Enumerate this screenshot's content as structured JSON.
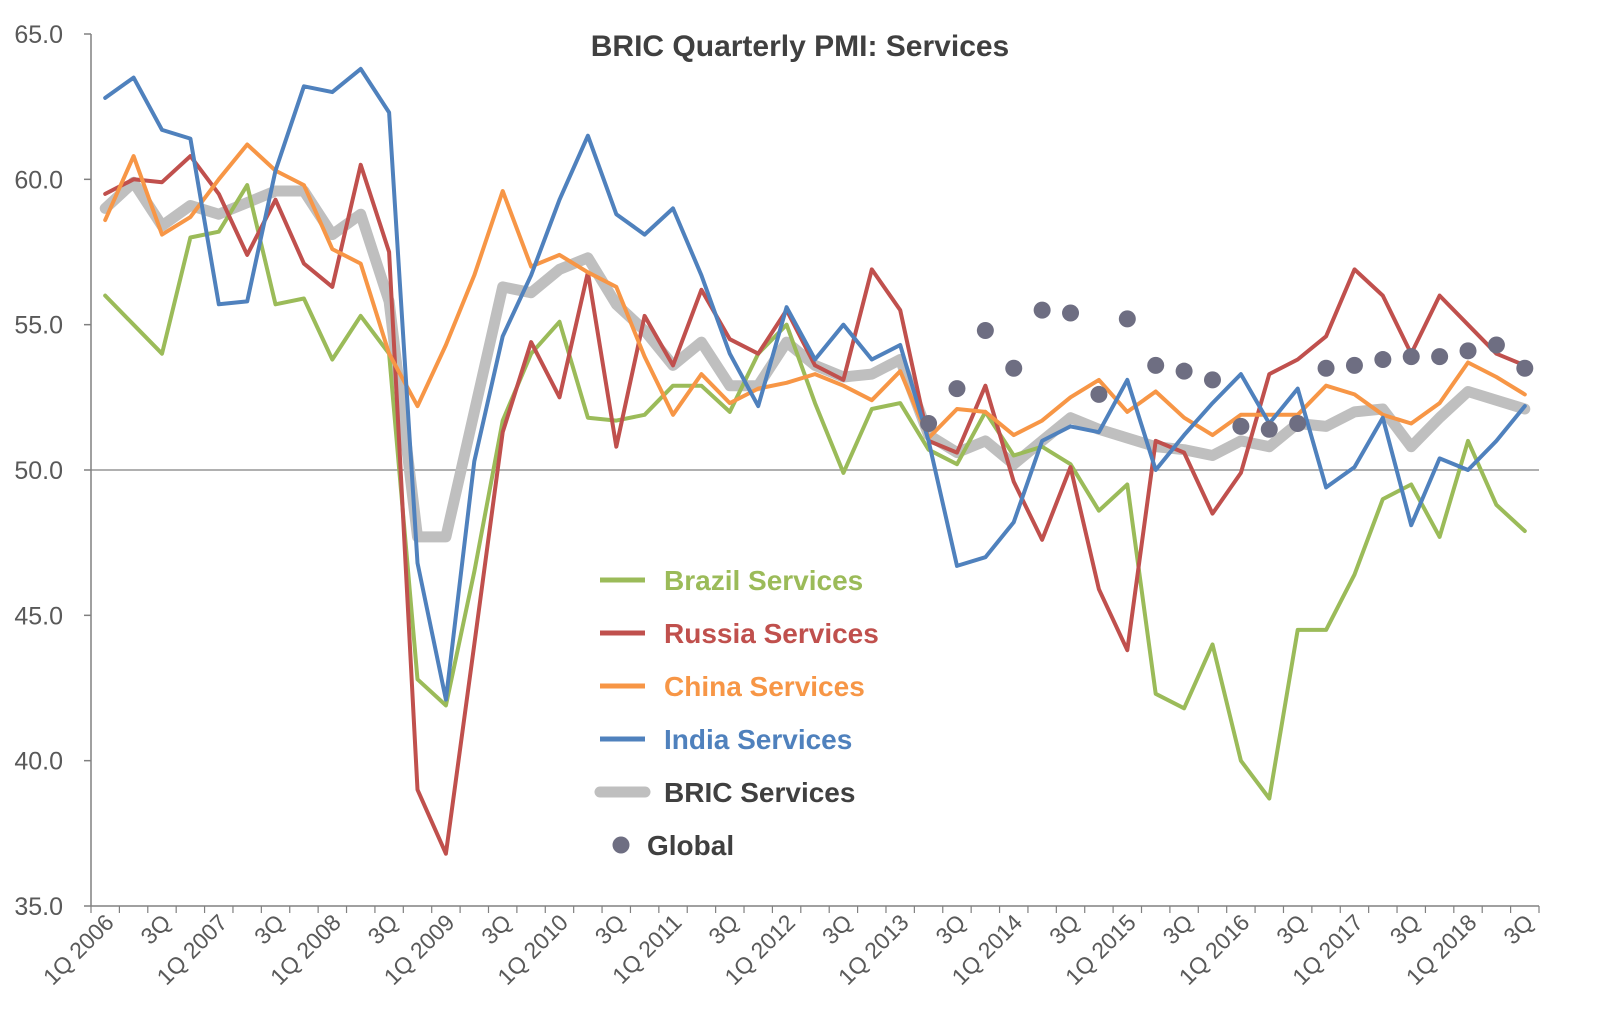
{
  "chart_data": {
    "type": "line",
    "title": "BRIC Quarterly PMI: Services",
    "xlabel": "",
    "ylabel": "",
    "ylim": [
      35.0,
      65.0
    ],
    "yticks": [
      "35.0",
      "40.0",
      "45.0",
      "50.0",
      "55.0",
      "60.0",
      "65.0"
    ],
    "reference_line": 50.0,
    "x_tick_labels": [
      "1Q 2006",
      "3Q",
      "1Q 2007",
      "3Q",
      "1Q 2008",
      "3Q",
      "1Q 2009",
      "3Q",
      "1Q 2010",
      "3Q",
      "1Q 2011",
      "3Q",
      "1Q 2012",
      "3Q",
      "1Q 2013",
      "3Q",
      "1Q 2014",
      "3Q",
      "1Q 2015",
      "3Q",
      "1Q 2016",
      "3Q",
      "1Q 2017",
      "3Q",
      "1Q 2018",
      "3Q"
    ],
    "legend_position": "center",
    "series": [
      {
        "name": "Brazil Services",
        "color": "#9BBB59",
        "style": "line",
        "values": [
          56.0,
          55.0,
          54.0,
          58.0,
          58.2,
          59.8,
          55.7,
          55.9,
          53.8,
          55.3,
          54.0,
          42.8,
          41.9,
          46.5,
          51.7,
          54.0,
          55.1,
          51.8,
          51.7,
          51.9,
          52.9,
          52.9,
          52.0,
          54.0,
          55.0,
          52.3,
          49.9,
          52.1,
          52.3,
          50.7,
          50.2,
          52.0,
          50.5,
          50.8,
          50.2,
          48.6,
          49.5,
          42.3,
          41.8,
          44.0,
          40.0,
          38.7,
          44.5,
          44.5,
          46.4,
          49.0,
          49.5,
          47.7,
          51.0,
          48.8,
          47.9
        ]
      },
      {
        "name": "Russia Services",
        "color": "#C0504D",
        "style": "line",
        "values": [
          59.5,
          60.0,
          59.9,
          60.8,
          59.5,
          57.4,
          59.3,
          57.1,
          56.3,
          60.5,
          57.5,
          39.0,
          36.8,
          44.0,
          51.3,
          54.4,
          52.5,
          56.8,
          50.8,
          55.3,
          53.6,
          56.2,
          54.5,
          54.0,
          55.5,
          53.6,
          53.1,
          56.9,
          55.5,
          51.0,
          50.6,
          52.9,
          49.6,
          47.6,
          50.1,
          45.9,
          43.8,
          51.0,
          50.6,
          48.5,
          49.9,
          53.3,
          53.8,
          54.6,
          56.9,
          56.0,
          54.0,
          56.0,
          55.0,
          54.0,
          53.6
        ]
      },
      {
        "name": "China Services",
        "color": "#F79646",
        "style": "line",
        "values": [
          58.6,
          60.8,
          58.1,
          58.7,
          60.0,
          61.2,
          60.3,
          59.8,
          57.6,
          57.1,
          54.0,
          52.2,
          54.3,
          56.7,
          59.6,
          57.0,
          57.4,
          56.8,
          56.3,
          53.9,
          51.9,
          53.3,
          52.3,
          52.8,
          53.0,
          53.3,
          52.9,
          52.4,
          53.4,
          51.1,
          52.1,
          52.0,
          51.2,
          51.7,
          52.5,
          53.1,
          52.0,
          52.7,
          51.8,
          51.2,
          51.9,
          51.9,
          51.9,
          52.9,
          52.6,
          51.9,
          51.6,
          52.3,
          53.7,
          53.2,
          52.6
        ]
      },
      {
        "name": "India Services",
        "color": "#4F81BD",
        "style": "line",
        "values": [
          62.8,
          63.5,
          61.7,
          61.4,
          55.7,
          55.8,
          60.3,
          63.2,
          63.0,
          63.8,
          62.3,
          46.8,
          42.1,
          50.3,
          54.6,
          56.7,
          59.3,
          61.5,
          58.8,
          58.1,
          59.0,
          56.7,
          54.0,
          52.2,
          55.6,
          53.8,
          55.0,
          53.8,
          54.3,
          51.0,
          46.7,
          47.0,
          48.2,
          51.0,
          51.5,
          51.3,
          53.1,
          50.0,
          51.2,
          52.3,
          53.3,
          51.6,
          52.8,
          49.4,
          50.1,
          51.8,
          48.1,
          50.4,
          50.0,
          51.0,
          52.2
        ]
      },
      {
        "name": "BRIC Services",
        "color": "#BFBFBF",
        "style": "thick",
        "values": [
          59.0,
          59.9,
          58.4,
          59.1,
          58.8,
          59.2,
          59.6,
          59.6,
          58.1,
          58.8,
          55.8,
          47.7,
          47.7,
          52.0,
          56.3,
          56.1,
          56.9,
          57.3,
          55.7,
          54.8,
          53.6,
          54.4,
          52.9,
          52.9,
          54.4,
          53.6,
          53.2,
          53.3,
          53.8,
          51.2,
          50.6,
          51.0,
          50.2,
          51.0,
          51.8,
          51.4,
          51.1,
          50.8,
          50.7,
          50.5,
          51.0,
          50.8,
          51.6,
          51.5,
          52.0,
          52.1,
          50.8,
          51.8,
          52.7,
          52.4,
          52.1
        ]
      },
      {
        "name": "Global",
        "color": "#6E6E82",
        "style": "dots",
        "start_index": 29,
        "values": [
          51.6,
          52.8,
          54.8,
          53.5,
          55.5,
          55.4,
          52.6,
          55.2,
          53.6,
          53.4,
          53.1,
          51.5,
          51.4,
          51.6,
          53.5,
          53.6,
          53.8,
          53.9,
          53.9,
          54.1,
          54.3,
          53.5
        ]
      }
    ]
  }
}
